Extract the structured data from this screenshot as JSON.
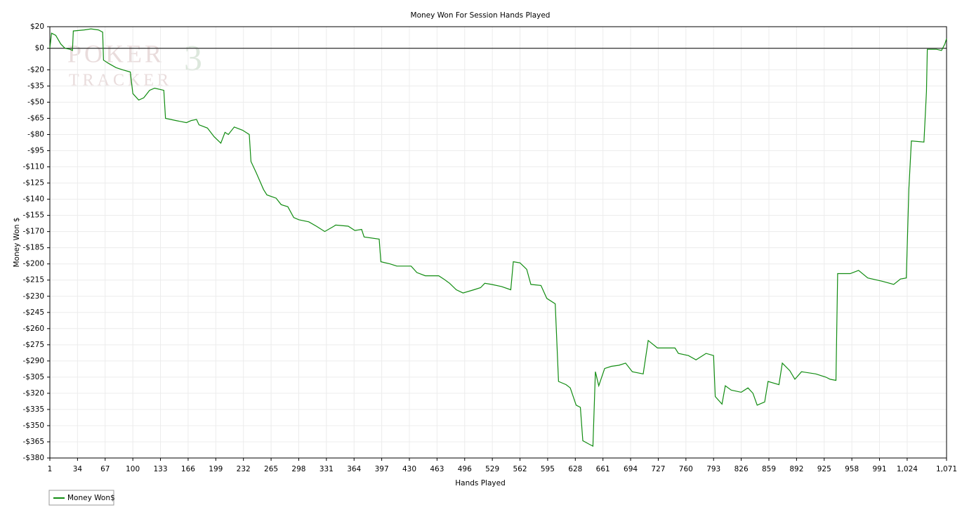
{
  "chart_data": {
    "type": "line",
    "title": "Money Won For Session Hands Played",
    "xlabel": "Hands Played",
    "ylabel": "Money Won $",
    "watermark": {
      "top": "POKER",
      "bottom": "TRACKER",
      "mark": "3"
    },
    "xlim": [
      1,
      1071
    ],
    "ylim": [
      -380,
      20
    ],
    "xticks": [
      1,
      34,
      67,
      100,
      133,
      166,
      199,
      232,
      265,
      298,
      331,
      364,
      397,
      430,
      463,
      496,
      529,
      562,
      595,
      628,
      661,
      694,
      727,
      760,
      793,
      826,
      859,
      892,
      925,
      958,
      991,
      {
        "value": 1024,
        "label": "1,024"
      },
      {
        "value": 1071,
        "label": "1,071"
      }
    ],
    "yticks": [
      {
        "value": 20,
        "label": "$20"
      },
      {
        "value": 0,
        "label": "$0"
      },
      {
        "value": -20,
        "label": "-$20"
      },
      {
        "value": -35,
        "label": "-$35"
      },
      {
        "value": -50,
        "label": "-$50"
      },
      {
        "value": -65,
        "label": "-$65"
      },
      {
        "value": -80,
        "label": "-$80"
      },
      {
        "value": -95,
        "label": "-$95"
      },
      {
        "value": -110,
        "label": "-$110"
      },
      {
        "value": -125,
        "label": "-$125"
      },
      {
        "value": -140,
        "label": "-$140"
      },
      {
        "value": -155,
        "label": "-$155"
      },
      {
        "value": -170,
        "label": "-$170"
      },
      {
        "value": -185,
        "label": "-$185"
      },
      {
        "value": -200,
        "label": "-$200"
      },
      {
        "value": -215,
        "label": "-$215"
      },
      {
        "value": -230,
        "label": "-$230"
      },
      {
        "value": -245,
        "label": "-$245"
      },
      {
        "value": -260,
        "label": "-$260"
      },
      {
        "value": -275,
        "label": "-$275"
      },
      {
        "value": -290,
        "label": "-$290"
      },
      {
        "value": -305,
        "label": "-$305"
      },
      {
        "value": -320,
        "label": "-$320"
      },
      {
        "value": -335,
        "label": "-$335"
      },
      {
        "value": -350,
        "label": "-$350"
      },
      {
        "value": -365,
        "label": "-$365"
      },
      {
        "value": -380,
        "label": "-$380"
      }
    ],
    "grid": true,
    "legend": "bottom-left",
    "x": [
      1,
      3,
      8,
      14,
      19,
      25,
      28,
      29,
      42,
      50,
      59,
      64,
      65,
      71,
      80,
      88,
      97,
      100,
      107,
      113,
      120,
      126,
      137,
      139,
      151,
      164,
      170,
      176,
      179,
      189,
      197,
      205,
      210,
      214,
      221,
      231,
      239,
      241,
      247,
      256,
      260,
      271,
      277,
      285,
      292,
      298,
      310,
      319,
      329,
      340,
      342,
      357,
      365,
      373,
      376,
      394,
      396,
      407,
      415,
      432,
      439,
      449,
      465,
      471,
      478,
      486,
      494,
      507,
      515,
      520,
      528,
      540,
      551,
      554,
      562,
      570,
      575,
      587,
      594,
      604,
      608,
      617,
      622,
      629,
      634,
      637,
      644,
      649,
      652,
      656,
      663,
      671,
      680,
      688,
      696,
      709,
      715,
      726,
      747,
      751,
      763,
      772,
      780,
      784,
      793,
      795,
      803,
      807,
      814,
      826,
      834,
      840,
      845,
      854,
      858,
      871,
      875,
      884,
      890,
      898,
      915,
      927,
      932,
      939,
      941,
      956,
      966,
      977,
      994,
      1008,
      1016,
      1023,
      1026,
      1029,
      1044,
      1047,
      1048,
      1059,
      1065,
      1069,
      1071
    ],
    "series": [
      {
        "name": "Money Won$",
        "color": "#118c11",
        "values": [
          0,
          14,
          12,
          4,
          0,
          -1,
          -2,
          16,
          17,
          18,
          17,
          15,
          -11,
          -14,
          -18,
          -20,
          -22,
          -42,
          -48,
          -46,
          -39,
          -37,
          -39,
          -65,
          -67,
          -69,
          -67,
          -66,
          -71,
          -74,
          -82,
          -88,
          -78,
          -80,
          -73,
          -76,
          -80,
          -105,
          -115,
          -131,
          -136,
          -139,
          -145,
          -147,
          -157,
          -159,
          -161,
          -165,
          -170,
          -165,
          -164,
          -165,
          -169,
          -168,
          -175,
          -177,
          -198,
          -200,
          -202,
          -202,
          -208,
          -211,
          -211,
          -214,
          -218,
          -224,
          -227,
          -224,
          -222,
          -218,
          -219,
          -221,
          -224,
          -198,
          -199,
          -205,
          -219,
          -220,
          -232,
          -237,
          -309,
          -312,
          -315,
          -331,
          -333,
          -364,
          -367,
          -369,
          -300,
          -313,
          -297,
          -295,
          -294,
          -292,
          -300,
          -302,
          -271,
          -278,
          -278,
          -283,
          -285,
          -289,
          -285,
          -283,
          -285,
          -323,
          -330,
          -313,
          -317,
          -319,
          -315,
          -320,
          -331,
          -328,
          -309,
          -312,
          -292,
          -299,
          -307,
          -300,
          -302,
          -305,
          -307,
          -308,
          -209,
          -209,
          -206,
          -213,
          -216,
          -219,
          -214,
          -213,
          -131,
          -86,
          -87,
          -40,
          -1,
          -1,
          -2,
          4,
          9
        ]
      }
    ]
  }
}
